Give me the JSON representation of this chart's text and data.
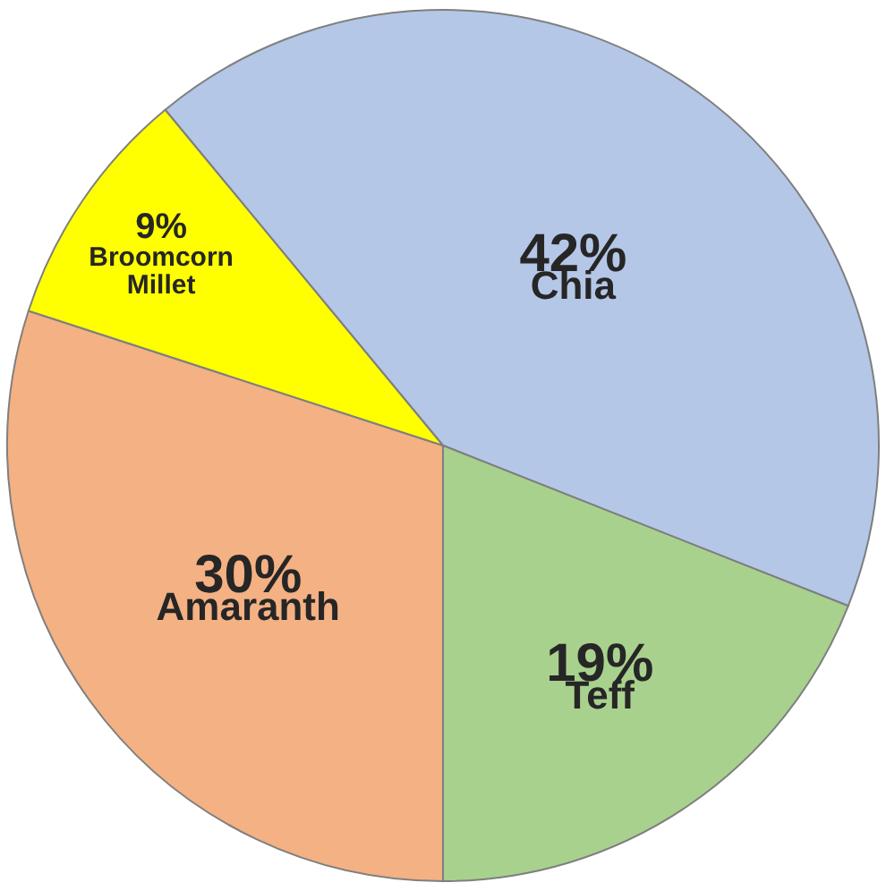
{
  "chart_data": {
    "type": "pie",
    "categories": [
      "Chia",
      "Teff",
      "Amaranth",
      "Broomcorn Millet"
    ],
    "values": [
      42,
      19,
      30,
      9
    ],
    "value_labels": [
      "42%",
      "19%",
      "30%",
      "9%"
    ],
    "colors": [
      "#b4c7e7",
      "#a9d18e",
      "#f4b183",
      "#ffff00"
    ],
    "legend": false
  }
}
